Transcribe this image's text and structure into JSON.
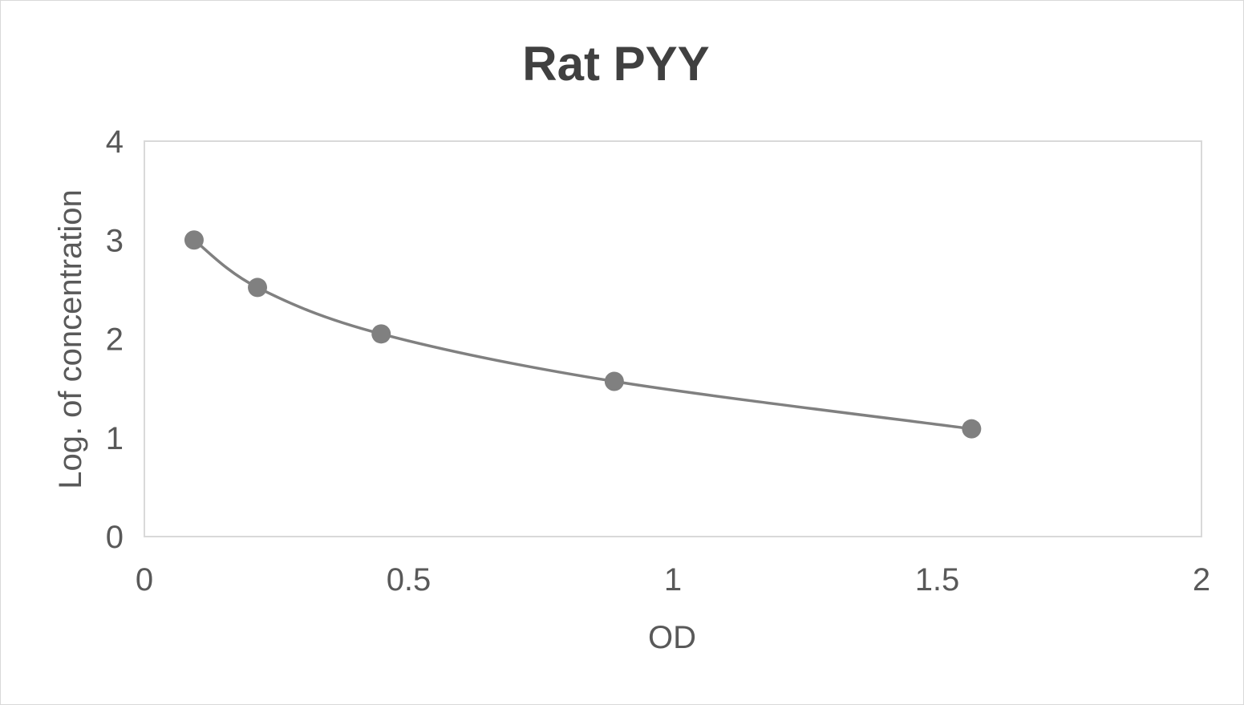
{
  "chart_data": {
    "type": "scatter",
    "title": "Rat PYY",
    "xlabel": "OD",
    "ylabel": "Log. of concentration",
    "xlim": [
      0,
      2
    ],
    "ylim": [
      0,
      4
    ],
    "xticks": [
      "0",
      "0.5",
      "1",
      "1.5",
      "2"
    ],
    "yticks": [
      "0",
      "1",
      "2",
      "3",
      "4"
    ],
    "grid": false,
    "smoothed_line": true,
    "colors": {
      "series": "#808080",
      "title": "#404040",
      "axis_text": "#595959",
      "border": "#d9d9d9"
    },
    "series": [
      {
        "x": [
          0.094,
          0.214,
          0.448,
          0.889,
          1.565
        ],
        "y": [
          3.0,
          2.52,
          2.05,
          1.57,
          1.09
        ]
      }
    ]
  }
}
